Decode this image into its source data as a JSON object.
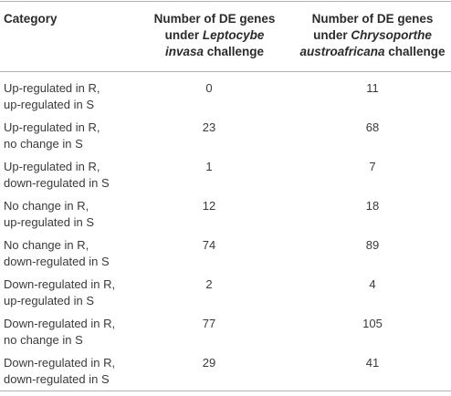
{
  "header": {
    "category": "Category",
    "col1_line1": "Number of DE genes",
    "col1_line2_prefix": "under ",
    "col1_line2_italic": "Leptocybe",
    "col1_line3_italic": "invasa",
    "col1_line3_suffix": " challenge",
    "col2_line1": "Number of DE genes",
    "col2_line2_prefix": "under ",
    "col2_line2_italic": "Chrysoporthe",
    "col2_line3_italic": "austroafricana",
    "col2_line3_suffix": " challenge"
  },
  "rows": [
    {
      "cat1": "Up-regulated in R,",
      "cat2": "up-regulated in S",
      "v1": "0",
      "v2": "11"
    },
    {
      "cat1": "Up-regulated in R,",
      "cat2": "no change in S",
      "v1": "23",
      "v2": "68"
    },
    {
      "cat1": "Up-regulated in R,",
      "cat2": "down-regulated in S",
      "v1": "1",
      "v2": "7"
    },
    {
      "cat1": "No change in R,",
      "cat2": "up-regulated in S",
      "v1": "12",
      "v2": "18"
    },
    {
      "cat1": "No change in R,",
      "cat2": "down-regulated in S",
      "v1": "74",
      "v2": "89"
    },
    {
      "cat1": "Down-regulated in R,",
      "cat2": "up-regulated in S",
      "v1": "2",
      "v2": "4"
    },
    {
      "cat1": "Down-regulated in R,",
      "cat2": "no change in S",
      "v1": "77",
      "v2": "105"
    },
    {
      "cat1": "Down-regulated in R,",
      "cat2": "down-regulated in S",
      "v1": "29",
      "v2": "41"
    }
  ]
}
